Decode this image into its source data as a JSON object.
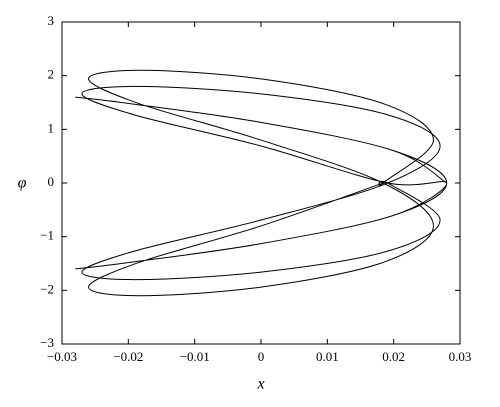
{
  "chart_data": {
    "type": "line",
    "xlabel": "x",
    "ylabel": "φ",
    "xlim": [
      -0.03,
      0.03
    ],
    "xticks": [
      {
        "value": -0.03,
        "label": "−0.03"
      },
      {
        "value": -0.02,
        "label": "−0.02"
      },
      {
        "value": -0.01,
        "label": "−0.01"
      },
      0,
      0.01,
      0.02,
      0.03
    ],
    "ylim": [
      -3,
      3
    ],
    "yticks": [
      {
        "value": -3,
        "label": "−3"
      },
      {
        "value": -2,
        "label": "−2"
      },
      {
        "value": -1,
        "label": "−1"
      },
      0,
      1,
      2,
      3
    ],
    "grid": false,
    "series": [
      {
        "color": "#000000",
        "x": [
          0.028,
          0.0198,
          0,
          -0.0198,
          -0.028,
          -0.0198,
          0,
          0.0198,
          0.028,
          0.0198,
          0,
          -0.0198,
          -0.028,
          -0.0198,
          0,
          0.0198,
          0.028,
          0.0191,
          0,
          -0.0191,
          -0.027,
          -0.0191,
          0,
          0.0191,
          0.027,
          0.0191,
          0,
          -0.0191,
          -0.027,
          -0.0191,
          0,
          0.0191,
          0.027,
          0.0191,
          0.0184,
          0.026,
          0.0184,
          0,
          -0.0184,
          -0.026,
          -0.0184,
          0,
          0.0184,
          0.026,
          0.0184,
          0,
          -0.0184,
          -0.026,
          -0.0184,
          0,
          0.0184
        ],
        "values": [
          0,
          0.61,
          1.13,
          1.48,
          1.6,
          1.48,
          1.13,
          0.61,
          0,
          -0.61,
          -1.13,
          -1.48,
          -1.6,
          -1.48,
          -1.13,
          -0.61,
          0,
          0,
          0.69,
          1.27,
          1.66,
          1.8,
          1.66,
          1.27,
          0.69,
          0,
          -0.69,
          -1.27,
          -1.66,
          -1.8,
          -1.66,
          -1.27,
          -0.69,
          0,
          0,
          0.8,
          1.48,
          1.94,
          2.1,
          1.94,
          1.48,
          0.8,
          0,
          -0.8,
          -1.48,
          -1.94,
          -2.1,
          -1.94,
          -1.48,
          -0.8,
          0
        ]
      }
    ]
  }
}
